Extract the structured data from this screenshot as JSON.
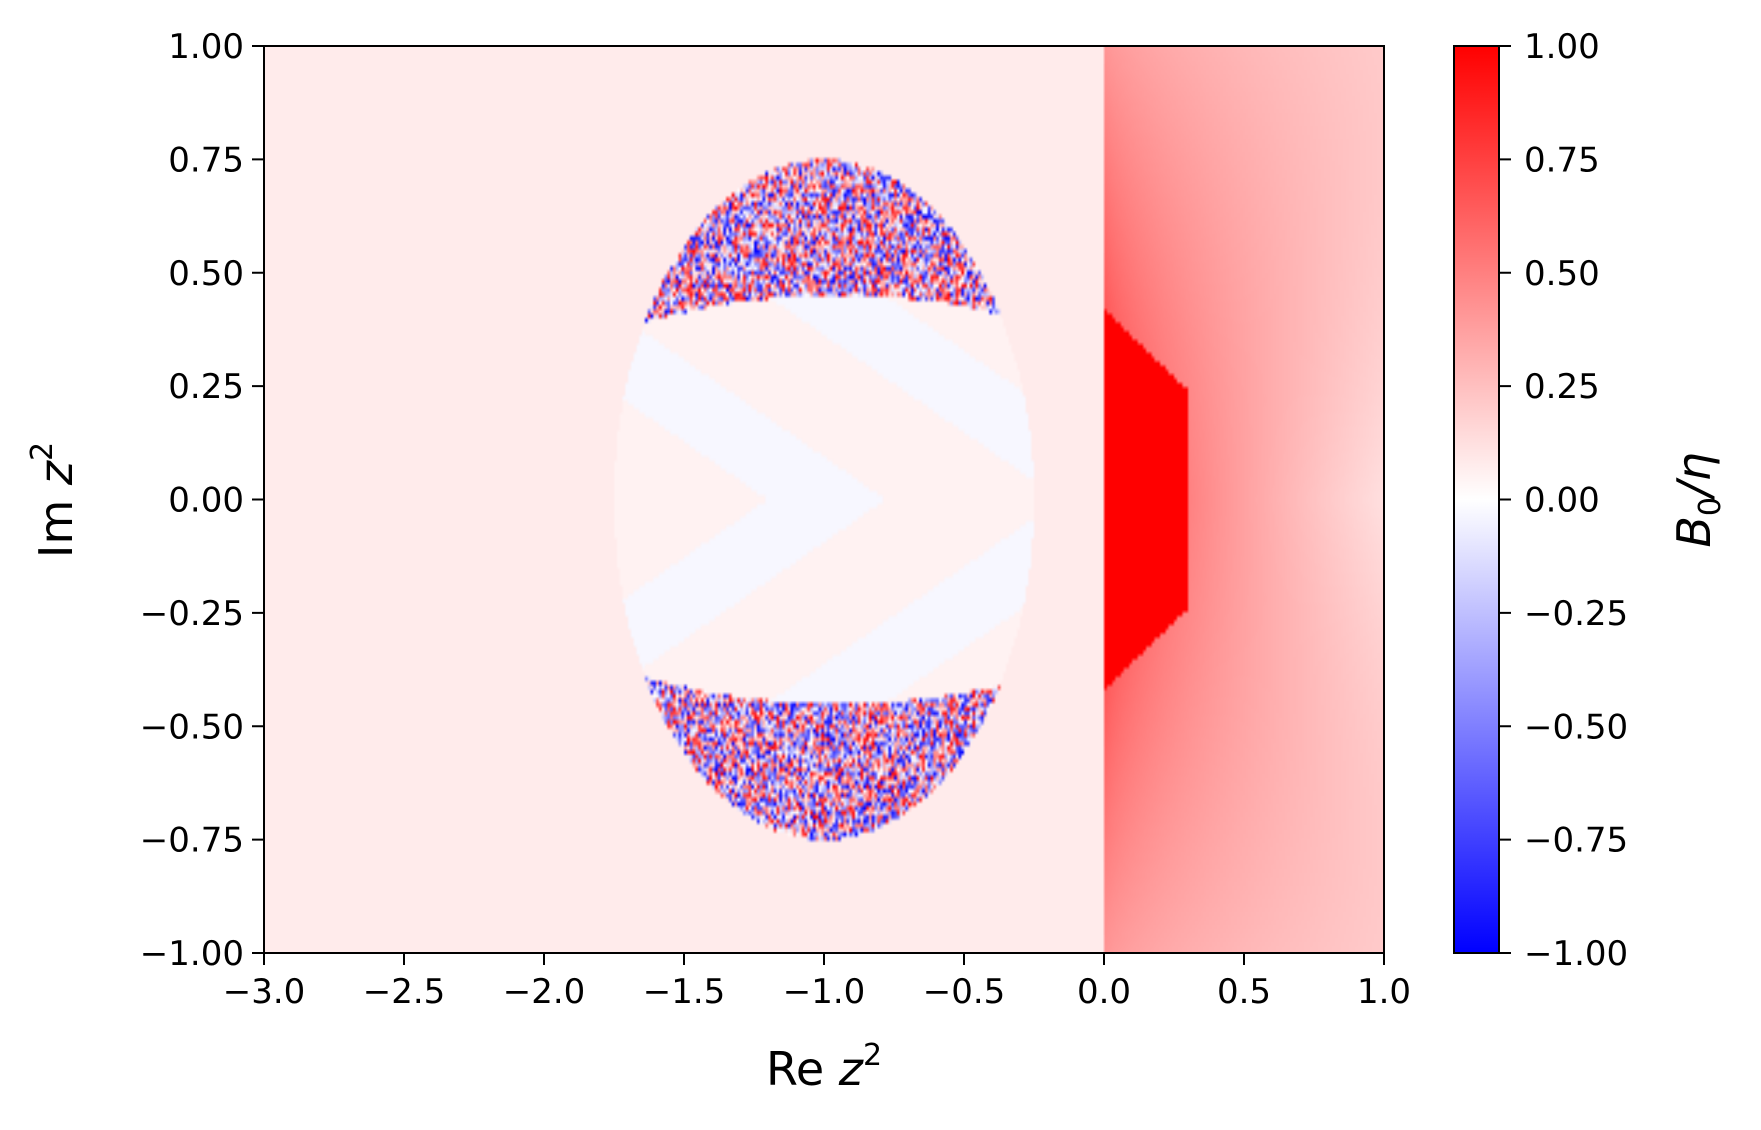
{
  "chart_data": {
    "type": "heatmap",
    "title": "",
    "xlabel": {
      "prefix": "Re ",
      "var": "z",
      "sup": "2"
    },
    "ylabel": {
      "prefix": "Im ",
      "var": "z",
      "sup": "2"
    },
    "xlim": [
      -3.0,
      1.0
    ],
    "ylim": [
      -1.0,
      1.0
    ],
    "x_ticks": [
      "−3.0",
      "−2.5",
      "−2.0",
      "−1.5",
      "−1.0",
      "−0.5",
      "0.0",
      "0.5",
      "1.0"
    ],
    "x_tick_values": [
      -3.0,
      -2.5,
      -2.0,
      -1.5,
      -1.0,
      -0.5,
      0.0,
      0.5,
      1.0
    ],
    "y_ticks": [
      "1.00",
      "0.75",
      "0.50",
      "0.25",
      "0.00",
      "−0.25",
      "−0.50",
      "−0.75",
      "−1.00"
    ],
    "y_tick_values": [
      1.0,
      0.75,
      0.5,
      0.25,
      0.0,
      -0.25,
      -0.5,
      -0.75,
      -1.0
    ],
    "grid": false,
    "colorbar": {
      "label": {
        "var": "B",
        "sub": "0",
        "rest": "/η"
      },
      "range": [
        -1.0,
        1.0
      ],
      "colormap": "bwr",
      "colors": {
        "low": "#0000ff",
        "mid": "#ffffff",
        "high": "#ff0000"
      },
      "ticks": [
        "1.00",
        "0.75",
        "0.50",
        "0.25",
        "0.00",
        "−0.25",
        "−0.50",
        "−0.75",
        "−1.00"
      ],
      "tick_values": [
        1.0,
        0.75,
        0.5,
        0.25,
        0.0,
        -0.25,
        -0.5,
        -0.75,
        -1.0
      ]
    },
    "regions": {
      "background_value": 0.08,
      "chaotic_ring": {
        "center": [
          -1.0,
          0.0
        ],
        "radius": 0.75,
        "inner_value": 0.05,
        "noise_range": [
          -1.0,
          1.0
        ]
      },
      "saturated_wedge": {
        "x_range": [
          0.0,
          0.3
        ],
        "y_range": [
          -0.42,
          0.42
        ],
        "value": 1.0
      },
      "right_gradient": {
        "x_range": [
          0.0,
          1.0
        ],
        "value_range": [
          0.85,
          0.12
        ]
      }
    }
  }
}
